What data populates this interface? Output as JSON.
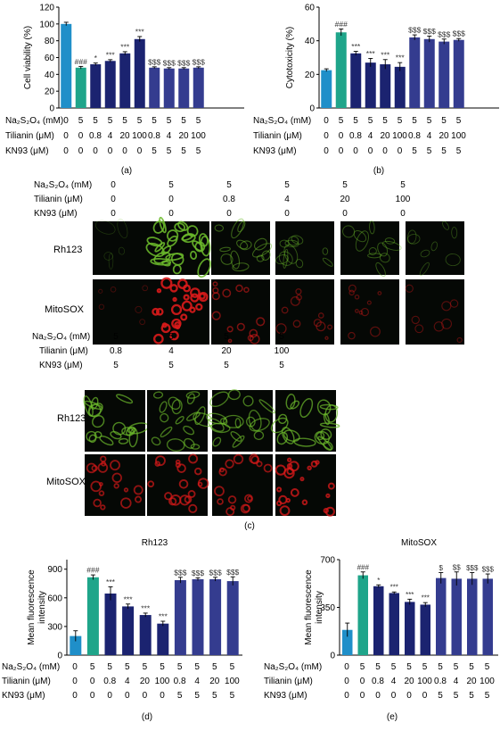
{
  "colors": {
    "control": "#1f8fc9",
    "model": "#1fa58a",
    "tilianin": "#1b2370",
    "kn93": "#343c8f",
    "rh123_cell": "#6dbb2c",
    "mitosox_cell": "#d81a1a"
  },
  "conditions_top": {
    "na_label": "Na₂S₂O₄ (mM)",
    "til_label": "Tilianin (μM)",
    "kn_label": "KN93 (μM)",
    "na": [
      "0",
      "5",
      "5",
      "5",
      "5",
      "5",
      "5",
      "5",
      "5",
      "5"
    ],
    "til": [
      "0",
      "0",
      "0.8",
      "4",
      "20",
      "100",
      "0.8",
      "4",
      "20",
      "100"
    ],
    "kn": [
      "0",
      "0",
      "0",
      "0",
      "0",
      "0",
      "5",
      "5",
      "5",
      "5"
    ]
  },
  "panel_c": {
    "rows_label_rh": "Rh123",
    "rows_label_mito": "MitoSOX",
    "upper_na": [
      "0",
      "5",
      "5",
      "5",
      "5",
      "5"
    ],
    "upper_til": [
      "0",
      "0",
      "0.8",
      "4",
      "20",
      "100"
    ],
    "upper_kn": [
      "0",
      "0",
      "0",
      "0",
      "0",
      "0"
    ],
    "lower_na": [
      "5",
      "5",
      "5",
      "5"
    ],
    "lower_til": [
      "0.8",
      "4",
      "20",
      "100"
    ],
    "lower_kn": [
      "5",
      "5",
      "5",
      "5"
    ],
    "upper_rh_intensity": [
      0.05,
      0.95,
      0.4,
      0.3,
      0.3,
      0.2
    ],
    "upper_mito_intensity": [
      0.08,
      0.95,
      0.45,
      0.3,
      0.25,
      0.2
    ],
    "lower_rh_intensity": [
      0.7,
      0.6,
      0.6,
      0.7
    ],
    "lower_mito_intensity": [
      0.6,
      0.65,
      0.6,
      0.75
    ]
  },
  "captions": {
    "a": "(a)",
    "b": "(b)",
    "c": "(c)",
    "d": "(d)",
    "e": "(e)"
  },
  "chart_data": [
    {
      "id": "a",
      "type": "bar",
      "title": "",
      "xlabel": "",
      "ylabel": "Cell viability (%)",
      "ylim": [
        0,
        120
      ],
      "yticks": [
        0,
        20,
        40,
        60,
        80,
        100,
        120
      ],
      "values": [
        100,
        48,
        52,
        56,
        65,
        82,
        48,
        47,
        47,
        48
      ],
      "errors": [
        2,
        1.5,
        1.5,
        1.5,
        2,
        3,
        1,
        1,
        1,
        1
      ],
      "annotations": [
        "",
        "###",
        "*",
        "***",
        "***",
        "***",
        "$$$",
        "$$$",
        "$$$",
        "$$$"
      ]
    },
    {
      "id": "b",
      "type": "bar",
      "title": "",
      "xlabel": "",
      "ylabel": "Cytotoxicity (%)",
      "ylim": [
        0,
        60
      ],
      "yticks": [
        0,
        20,
        40,
        60
      ],
      "values": [
        22.5,
        45,
        32.5,
        27,
        26,
        24.5,
        42,
        41,
        39.5,
        40.5
      ],
      "errors": [
        0.8,
        2,
        1.2,
        2.5,
        2.8,
        2.5,
        1.5,
        1.8,
        1.5,
        0.8
      ],
      "annotations": [
        "",
        "###",
        "***",
        "***",
        "***",
        "***",
        "$$$",
        "$$$",
        "$$$",
        "$$$"
      ]
    },
    {
      "id": "d",
      "type": "bar",
      "title": "Rh123",
      "xlabel": "",
      "ylabel": "Mean fluorescence intensity",
      "ylim": [
        0,
        1000
      ],
      "yticks": [
        0,
        300,
        600,
        900
      ],
      "values": [
        200,
        815,
        645,
        510,
        420,
        330,
        785,
        795,
        795,
        775
      ],
      "errors": [
        55,
        25,
        70,
        25,
        20,
        25,
        30,
        15,
        20,
        45
      ],
      "annotations": [
        "",
        "###",
        "***",
        "***",
        "***",
        "***",
        "$$$",
        "$$$",
        "$$$",
        "$$$"
      ]
    },
    {
      "id": "e",
      "type": "bar",
      "title": "MitoSOX",
      "xlabel": "",
      "ylabel": "Mean fluorescence intensity",
      "ylim": [
        0,
        700
      ],
      "yticks": [
        0,
        350,
        700
      ],
      "values": [
        185,
        585,
        505,
        455,
        390,
        370,
        565,
        560,
        560,
        560
      ],
      "errors": [
        50,
        25,
        10,
        8,
        20,
        15,
        40,
        50,
        45,
        35
      ],
      "annotations": [
        "",
        "###",
        "*",
        "***",
        "***",
        "***",
        "$",
        "$$",
        "$$$",
        "$$$"
      ]
    }
  ]
}
